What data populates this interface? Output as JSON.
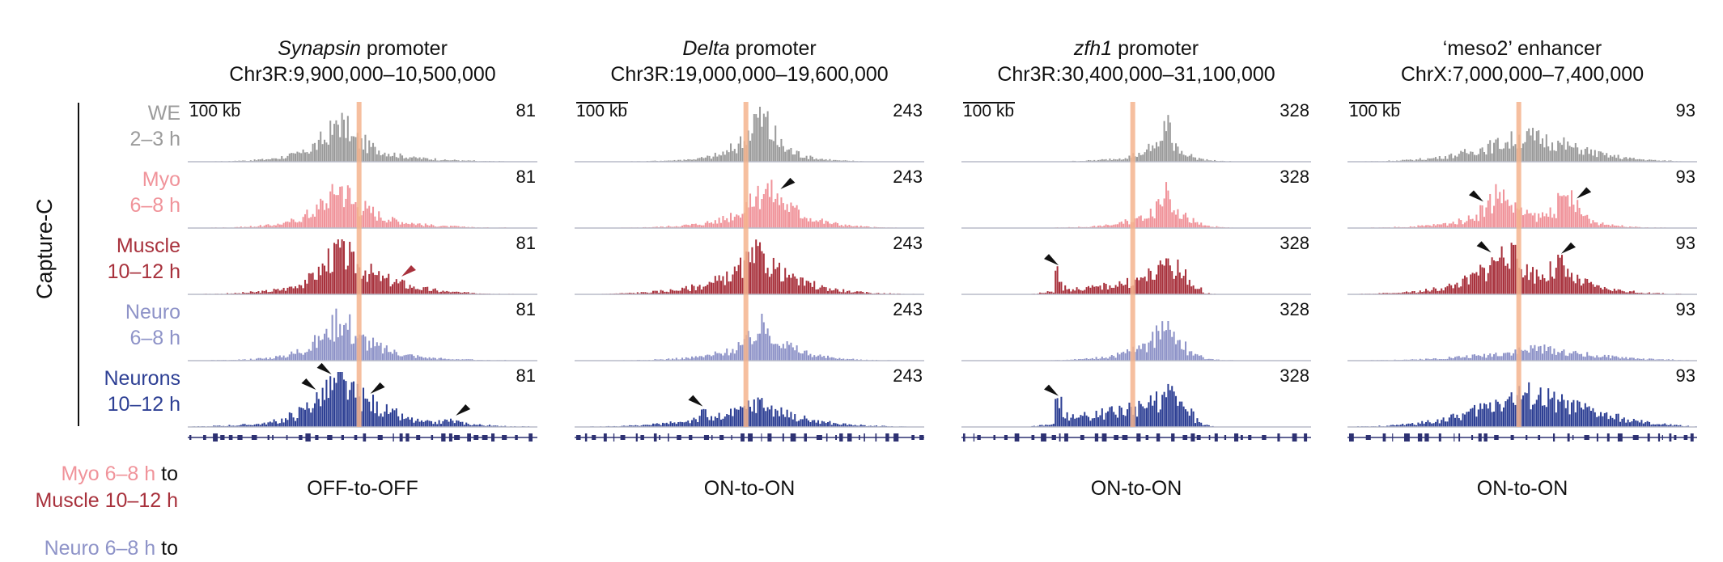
{
  "figure": {
    "side_label": "Capture-C",
    "scale_bar_label": "100 kb",
    "conditions": [
      {
        "line1": "WE",
        "line2": "2–3 h",
        "color": "#9b9b9b"
      },
      {
        "line1": "Myo",
        "line2": "6–8 h",
        "color": "#f0939a"
      },
      {
        "line1": "Muscle",
        "line2": "10–12 h",
        "color": "#a8313c"
      },
      {
        "line1": "Neuro",
        "line2": "6–8 h",
        "color": "#8e93c8"
      },
      {
        "line1": "Neurons",
        "line2": "10–12 h",
        "color": "#2d3f94"
      }
    ],
    "comparisons": [
      {
        "from": "Myo 6–8 h",
        "connector": "to",
        "to": "Muscle 10–12 h",
        "from_color": "#f0939a",
        "to_color": "#a8313c"
      },
      {
        "from": "Neuro 6–8 h",
        "connector": "to",
        "to": "",
        "from_color": "#8e93c8",
        "to_color": "#2d3f94"
      }
    ],
    "viewpoint_color": "#f4b48e",
    "gene_track_color": "#2d3172"
  },
  "chart_data": [
    {
      "type": "area",
      "gene": "Synapsin",
      "element": "promoter",
      "region": "Chr3R:9,900,000–10,500,000",
      "y_max": "81",
      "transition": "OFF-to-OFF",
      "profiles": [
        {
          "condition": "WE 2–3 h",
          "values": [
            0,
            0,
            0,
            1,
            1,
            1,
            2,
            2,
            3,
            4,
            5,
            7,
            9,
            12,
            16,
            22,
            30,
            40,
            55,
            75,
            60,
            42,
            35,
            28,
            22,
            18,
            14,
            11,
            9,
            7,
            6,
            5,
            4,
            3,
            3,
            2,
            2,
            1,
            1,
            1,
            1,
            0,
            0,
            0,
            0
          ]
        },
        {
          "condition": "Myo 6–8 h",
          "values": [
            0,
            0,
            0,
            1,
            1,
            1,
            2,
            2,
            3,
            4,
            5,
            7,
            9,
            13,
            18,
            25,
            33,
            45,
            60,
            77,
            64,
            46,
            38,
            31,
            24,
            19,
            15,
            12,
            10,
            8,
            6,
            5,
            4,
            3,
            3,
            2,
            2,
            1,
            1,
            1,
            1,
            0,
            0,
            0,
            0
          ]
        },
        {
          "condition": "Muscle 10–12 h",
          "values": [
            0,
            0,
            1,
            1,
            1,
            2,
            2,
            3,
            4,
            5,
            6,
            8,
            10,
            14,
            20,
            28,
            38,
            50,
            68,
            80,
            70,
            56,
            48,
            40,
            32,
            27,
            24,
            20,
            16,
            12,
            10,
            8,
            6,
            5,
            4,
            3,
            3,
            2,
            2,
            1,
            1,
            1,
            0,
            0,
            0
          ]
        },
        {
          "condition": "Neuro 6–8 h",
          "values": [
            0,
            0,
            0,
            1,
            1,
            1,
            2,
            2,
            3,
            4,
            5,
            7,
            9,
            13,
            18,
            25,
            34,
            46,
            62,
            78,
            65,
            48,
            40,
            32,
            25,
            20,
            16,
            13,
            10,
            8,
            6,
            5,
            4,
            3,
            3,
            2,
            2,
            1,
            1,
            1,
            1,
            0,
            0,
            0,
            0
          ]
        },
        {
          "condition": "Neurons 10–12 h",
          "values": [
            1,
            1,
            1,
            2,
            2,
            3,
            3,
            4,
            5,
            6,
            8,
            10,
            14,
            20,
            28,
            38,
            50,
            62,
            74,
            81,
            72,
            60,
            52,
            44,
            36,
            30,
            24,
            18,
            14,
            11,
            9,
            8,
            9,
            12,
            10,
            7,
            5,
            4,
            3,
            2,
            2,
            1,
            1,
            1,
            0
          ]
        }
      ],
      "arrowheads": [
        {
          "track": 2,
          "bin": 27,
          "color": "#a8313c"
        },
        {
          "track": 4,
          "bin": 16,
          "color": "#111111"
        },
        {
          "track": 4,
          "bin": 18,
          "color": "#111111"
        },
        {
          "track": 4,
          "bin": 23,
          "color": "#111111"
        },
        {
          "track": 4,
          "bin": 34,
          "color": "#111111"
        }
      ]
    },
    {
      "type": "area",
      "gene": "Delta",
      "element": "promoter",
      "region": "Chr3R:19,000,000–19,600,000",
      "y_max": "243",
      "transition": "ON-to-ON",
      "profiles": [
        {
          "condition": "WE 2–3 h",
          "values": [
            0,
            0,
            0,
            0,
            1,
            1,
            1,
            2,
            2,
            3,
            4,
            5,
            6,
            8,
            10,
            13,
            17,
            22,
            30,
            42,
            60,
            90,
            140,
            200,
            190,
            120,
            80,
            55,
            40,
            28,
            20,
            14,
            10,
            7,
            5,
            4,
            3,
            2,
            2,
            1,
            1,
            1,
            0,
            0,
            0
          ]
        },
        {
          "condition": "Myo 6–8 h",
          "values": [
            0,
            0,
            0,
            1,
            1,
            1,
            2,
            2,
            3,
            4,
            5,
            6,
            8,
            10,
            13,
            16,
            20,
            26,
            34,
            45,
            60,
            80,
            110,
            150,
            180,
            160,
            130,
            100,
            80,
            60,
            45,
            35,
            26,
            20,
            15,
            11,
            8,
            6,
            4,
            3,
            2,
            2,
            1,
            1,
            0
          ]
        },
        {
          "condition": "Muscle 10–12 h",
          "values": [
            1,
            1,
            2,
            2,
            3,
            4,
            5,
            6,
            8,
            10,
            12,
            15,
            18,
            22,
            27,
            33,
            40,
            50,
            62,
            78,
            95,
            120,
            150,
            175,
            160,
            130,
            105,
            85,
            68,
            55,
            44,
            35,
            28,
            22,
            17,
            13,
            10,
            8,
            6,
            5,
            4,
            3,
            2,
            2,
            1
          ]
        },
        {
          "condition": "Neuro 6–8 h",
          "values": [
            0,
            0,
            0,
            1,
            1,
            1,
            2,
            2,
            3,
            4,
            5,
            6,
            8,
            10,
            12,
            15,
            19,
            24,
            31,
            40,
            52,
            70,
            95,
            130,
            150,
            120,
            90,
            68,
            50,
            38,
            28,
            21,
            16,
            12,
            9,
            7,
            5,
            4,
            3,
            2,
            2,
            1,
            1,
            0,
            0
          ]
        },
        {
          "condition": "Neurons 10–12 h",
          "values": [
            1,
            1,
            2,
            2,
            3,
            4,
            5,
            6,
            8,
            10,
            12,
            15,
            18,
            22,
            28,
            36,
            60,
            40,
            45,
            52,
            62,
            78,
            95,
            110,
            100,
            82,
            68,
            56,
            46,
            38,
            31,
            25,
            20,
            16,
            13,
            10,
            8,
            6,
            5,
            4,
            3,
            2,
            2,
            1,
            1
          ]
        }
      ],
      "arrowheads": [
        {
          "track": 1,
          "bin": 26,
          "color": "#111111"
        },
        {
          "track": 4,
          "bin": 16,
          "color": "#111111"
        }
      ]
    },
    {
      "type": "area",
      "gene": "zfh1",
      "element": "promoter",
      "region": "Chr3R:30,400,000–31,100,000",
      "y_max": "328",
      "transition": "ON-to-ON",
      "profiles": [
        {
          "condition": "WE 2–3 h",
          "values": [
            0,
            0,
            0,
            0,
            0,
            0,
            0,
            0,
            1,
            1,
            1,
            2,
            2,
            3,
            4,
            5,
            7,
            9,
            12,
            16,
            22,
            30,
            40,
            55,
            80,
            120,
            200,
            110,
            60,
            35,
            20,
            12,
            7,
            4,
            3,
            2,
            1,
            1,
            1,
            0,
            0,
            0,
            0,
            0,
            0
          ]
        },
        {
          "condition": "Myo 6–8 h",
          "values": [
            0,
            0,
            0,
            0,
            0,
            0,
            0,
            0,
            1,
            1,
            1,
            2,
            3,
            4,
            5,
            6,
            8,
            11,
            15,
            20,
            28,
            38,
            52,
            72,
            100,
            150,
            240,
            140,
            80,
            45,
            25,
            14,
            8,
            5,
            3,
            2,
            1,
            1,
            1,
            0,
            0,
            0,
            0,
            0,
            0
          ]
        },
        {
          "condition": "Muscle 10–12 h",
          "values": [
            0,
            0,
            0,
            0,
            0,
            0,
            0,
            1,
            2,
            4,
            8,
            14,
            120,
            40,
            30,
            34,
            38,
            42,
            48,
            55,
            62,
            70,
            80,
            95,
            115,
            140,
            200,
            150,
            110,
            80,
            30,
            8,
            3,
            2,
            1,
            1,
            0,
            0,
            0,
            0,
            0,
            0,
            0,
            0,
            0
          ]
        },
        {
          "condition": "Neuro 6–8 h",
          "values": [
            0,
            0,
            0,
            0,
            0,
            0,
            0,
            0,
            1,
            1,
            2,
            3,
            4,
            5,
            7,
            9,
            12,
            16,
            21,
            28,
            38,
            50,
            66,
            88,
            120,
            170,
            260,
            160,
            90,
            50,
            28,
            15,
            8,
            5,
            3,
            2,
            1,
            1,
            1,
            0,
            0,
            0,
            0,
            0,
            0
          ]
        },
        {
          "condition": "Neurons 10–12 h",
          "values": [
            0,
            0,
            0,
            0,
            0,
            0,
            0,
            1,
            2,
            5,
            10,
            20,
            130,
            70,
            60,
            62,
            68,
            74,
            80,
            88,
            96,
            104,
            112,
            124,
            140,
            160,
            190,
            170,
            120,
            80,
            40,
            10,
            4,
            2,
            1,
            1,
            0,
            0,
            0,
            0,
            0,
            0,
            0,
            0,
            0
          ]
        }
      ],
      "arrowheads": [
        {
          "track": 2,
          "bin": 12,
          "color": "#111111"
        },
        {
          "track": 4,
          "bin": 12,
          "color": "#111111"
        }
      ]
    },
    {
      "type": "area",
      "gene": "",
      "element": "‘meso2’ enhancer",
      "region": "ChrX:7,000,000–7,400,000",
      "y_max": "93",
      "transition": "ON-to-ON",
      "profiles": [
        {
          "condition": "WE 2–3 h",
          "values": [
            0,
            0,
            1,
            1,
            1,
            2,
            2,
            3,
            4,
            5,
            6,
            8,
            10,
            12,
            15,
            18,
            22,
            26,
            30,
            34,
            38,
            42,
            46,
            48,
            45,
            42,
            38,
            34,
            30,
            26,
            22,
            18,
            15,
            12,
            10,
            8,
            6,
            5,
            4,
            3,
            2,
            2,
            1,
            1,
            0
          ]
        },
        {
          "condition": "Myo 6–8 h",
          "values": [
            0,
            0,
            0,
            1,
            1,
            1,
            2,
            2,
            3,
            4,
            5,
            6,
            8,
            10,
            13,
            18,
            25,
            35,
            50,
            70,
            55,
            40,
            30,
            25,
            22,
            25,
            35,
            48,
            60,
            40,
            25,
            15,
            10,
            7,
            5,
            4,
            3,
            2,
            1,
            1,
            1,
            0,
            0,
            0,
            0
          ]
        },
        {
          "condition": "Muscle 10–12 h",
          "values": [
            0,
            1,
            1,
            1,
            2,
            2,
            3,
            4,
            5,
            6,
            8,
            10,
            13,
            17,
            22,
            28,
            36,
            46,
            60,
            74,
            85,
            70,
            55,
            45,
            38,
            36,
            45,
            58,
            35,
            28,
            22,
            18,
            14,
            11,
            9,
            7,
            5,
            4,
            3,
            2,
            2,
            1,
            1,
            0,
            0
          ]
        },
        {
          "condition": "Neuro 6–8 h",
          "values": [
            0,
            0,
            0,
            1,
            1,
            1,
            2,
            2,
            2,
            3,
            3,
            4,
            5,
            6,
            7,
            8,
            9,
            10,
            12,
            14,
            16,
            18,
            20,
            22,
            24,
            22,
            20,
            18,
            16,
            14,
            12,
            10,
            9,
            8,
            7,
            6,
            5,
            4,
            3,
            3,
            2,
            2,
            1,
            1,
            0
          ]
        },
        {
          "condition": "Neurons 10–12 h",
          "values": [
            0,
            1,
            1,
            1,
            2,
            3,
            4,
            5,
            6,
            8,
            10,
            12,
            15,
            18,
            22,
            26,
            32,
            38,
            44,
            50,
            54,
            58,
            60,
            62,
            58,
            54,
            50,
            46,
            42,
            38,
            34,
            30,
            26,
            22,
            18,
            15,
            12,
            10,
            8,
            6,
            5,
            4,
            3,
            2,
            1
          ]
        }
      ],
      "arrowheads": [
        {
          "track": 1,
          "bin": 17,
          "color": "#111111"
        },
        {
          "track": 1,
          "bin": 29,
          "color": "#111111"
        },
        {
          "track": 2,
          "bin": 18,
          "color": "#111111"
        },
        {
          "track": 2,
          "bin": 27,
          "color": "#111111"
        }
      ]
    }
  ]
}
